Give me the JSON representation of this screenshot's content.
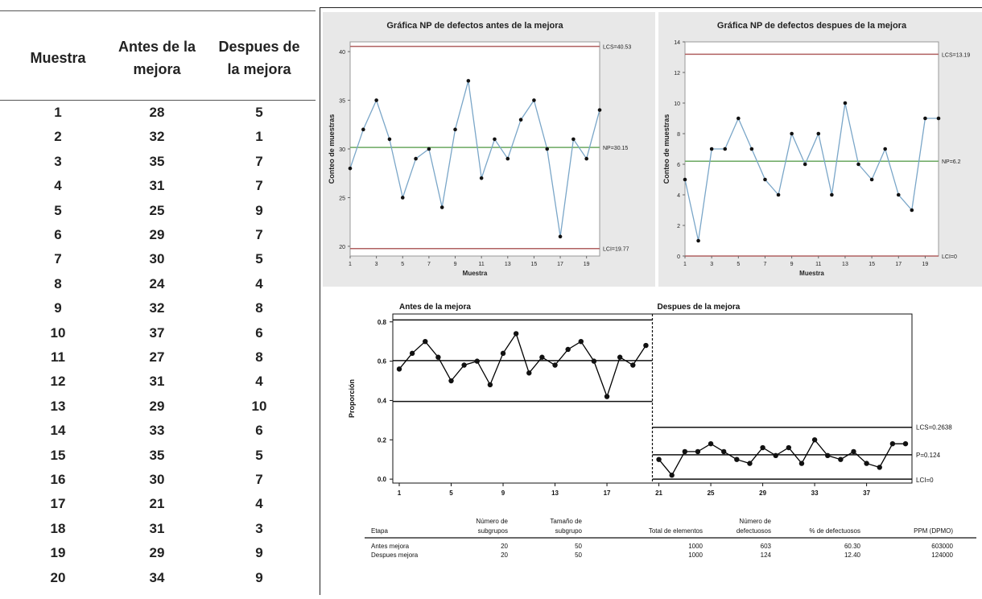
{
  "table": {
    "headers": [
      [
        "Muestra"
      ],
      [
        "Antes de la",
        "mejora"
      ],
      [
        "Despues de",
        "la mejora"
      ]
    ],
    "rows": [
      [
        "1",
        "28",
        "5"
      ],
      [
        "2",
        "32",
        "1"
      ],
      [
        "3",
        "35",
        "7"
      ],
      [
        "4",
        "31",
        "7"
      ],
      [
        "5",
        "25",
        "9"
      ],
      [
        "6",
        "29",
        "7"
      ],
      [
        "7",
        "30",
        "5"
      ],
      [
        "8",
        "24",
        "4"
      ],
      [
        "9",
        "32",
        "8"
      ],
      [
        "10",
        "37",
        "6"
      ],
      [
        "11",
        "27",
        "8"
      ],
      [
        "12",
        "31",
        "4"
      ],
      [
        "13",
        "29",
        "10"
      ],
      [
        "14",
        "33",
        "6"
      ],
      [
        "15",
        "35",
        "5"
      ],
      [
        "16",
        "30",
        "7"
      ],
      [
        "17",
        "21",
        "4"
      ],
      [
        "18",
        "31",
        "3"
      ],
      [
        "19",
        "29",
        "9"
      ],
      [
        "20",
        "34",
        "9"
      ]
    ]
  },
  "chart_data": [
    {
      "type": "line",
      "title": "Gráfica NP de defectos antes de la mejora",
      "xlabel": "Muestra",
      "ylabel": "Conteo de muestras",
      "x": [
        1,
        2,
        3,
        4,
        5,
        6,
        7,
        8,
        9,
        10,
        11,
        12,
        13,
        14,
        15,
        16,
        17,
        18,
        19,
        20
      ],
      "values": [
        28,
        32,
        35,
        31,
        25,
        29,
        30,
        24,
        32,
        37,
        27,
        31,
        29,
        33,
        35,
        30,
        21,
        31,
        29,
        34
      ],
      "xlim": [
        1,
        20
      ],
      "ylim": [
        19,
        41
      ],
      "yticks": [
        "20",
        "25",
        "30",
        "35",
        "40"
      ],
      "xticks": [
        "1",
        "3",
        "5",
        "7",
        "9",
        "11",
        "13",
        "15",
        "17",
        "19"
      ],
      "limits": {
        "ucl": 40.53,
        "center": 30.15,
        "lcl": 19.77
      },
      "limit_labels": {
        "ucl": "LCS=40.53",
        "center": "NP=30.15",
        "lcl": "LCI=19.77"
      },
      "colors": {
        "line": "#7aa6c8",
        "limit": "#b06060",
        "center": "#6aa860",
        "background": "#e8e8e8"
      }
    },
    {
      "type": "line",
      "title": "Gráfica NP de defectos despues de la mejora",
      "xlabel": "Muestra",
      "ylabel": "Conteo de muestras",
      "x": [
        1,
        2,
        3,
        4,
        5,
        6,
        7,
        8,
        9,
        10,
        11,
        12,
        13,
        14,
        15,
        16,
        17,
        18,
        19,
        20
      ],
      "values": [
        5,
        1,
        7,
        7,
        9,
        7,
        5,
        4,
        8,
        6,
        8,
        4,
        10,
        6,
        5,
        7,
        4,
        3,
        9,
        9
      ],
      "xlim": [
        1,
        20
      ],
      "ylim": [
        0,
        14
      ],
      "yticks": [
        "0",
        "2",
        "4",
        "6",
        "8",
        "10",
        "12",
        "14"
      ],
      "xticks": [
        "1",
        "3",
        "5",
        "7",
        "9",
        "11",
        "13",
        "15",
        "17",
        "19"
      ],
      "limits": {
        "ucl": 13.19,
        "center": 6.2,
        "lcl": 0
      },
      "limit_labels": {
        "ucl": "LCS=13.19",
        "center": "NP=6.2",
        "lcl": "LCI=0"
      },
      "colors": {
        "line": "#7aa6c8",
        "limit": "#b06060",
        "center": "#6aa860",
        "background": "#e8e8e8"
      }
    },
    {
      "type": "line",
      "ylabel": "Proporción",
      "stage_labels": [
        "Antes de la mejora",
        "Despues de la mejora"
      ],
      "x": [
        1,
        2,
        3,
        4,
        5,
        6,
        7,
        8,
        9,
        10,
        11,
        12,
        13,
        14,
        15,
        16,
        17,
        18,
        19,
        20,
        21,
        22,
        23,
        24,
        25,
        26,
        27,
        28,
        29,
        30,
        31,
        32,
        33,
        34,
        35,
        36,
        37,
        38,
        39,
        40
      ],
      "values": [
        0.56,
        0.64,
        0.7,
        0.62,
        0.5,
        0.58,
        0.6,
        0.48,
        0.64,
        0.74,
        0.54,
        0.62,
        0.58,
        0.66,
        0.7,
        0.6,
        0.42,
        0.62,
        0.58,
        0.68,
        0.1,
        0.02,
        0.14,
        0.14,
        0.18,
        0.14,
        0.1,
        0.08,
        0.16,
        0.12,
        0.16,
        0.08,
        0.2,
        0.12,
        0.1,
        0.14,
        0.08,
        0.06,
        0.18,
        0.18
      ],
      "xlim": [
        1,
        40
      ],
      "ylim": [
        -0.02,
        0.84
      ],
      "yticks": [
        "0.0",
        "0.2",
        "0.4",
        "0.6",
        "0.8"
      ],
      "xticks": [
        "1",
        "5",
        "9",
        "13",
        "17",
        "21",
        "25",
        "29",
        "33",
        "37"
      ],
      "stage1": {
        "ucl": 0.81,
        "center": 0.603,
        "lcl": 0.395
      },
      "stage2": {
        "ucl": 0.2638,
        "center": 0.124,
        "lcl": 0
      },
      "limit_labels": {
        "ucl": "LCS=0.2638",
        "center": "P=0.124",
        "lcl": "LCI=0"
      },
      "colors": {
        "line": "#000000"
      }
    },
    {
      "type": "table",
      "headers": [
        [
          "",
          "Etapa"
        ],
        [
          "Número de",
          "subgrupos"
        ],
        [
          "Tamaño de",
          "subgrupo"
        ],
        [
          "",
          "Total de elementos"
        ],
        [
          "Número de",
          "defectuosos"
        ],
        [
          "",
          "% de defectuosos"
        ],
        [
          "",
          "PPM (DPMO)"
        ]
      ],
      "rows": [
        [
          "Antes mejora",
          "20",
          "50",
          "1000",
          "603",
          "60.30",
          "603000"
        ],
        [
          "Despues mejora",
          "20",
          "50",
          "1000",
          "124",
          "12.40",
          "124000"
        ]
      ]
    }
  ]
}
